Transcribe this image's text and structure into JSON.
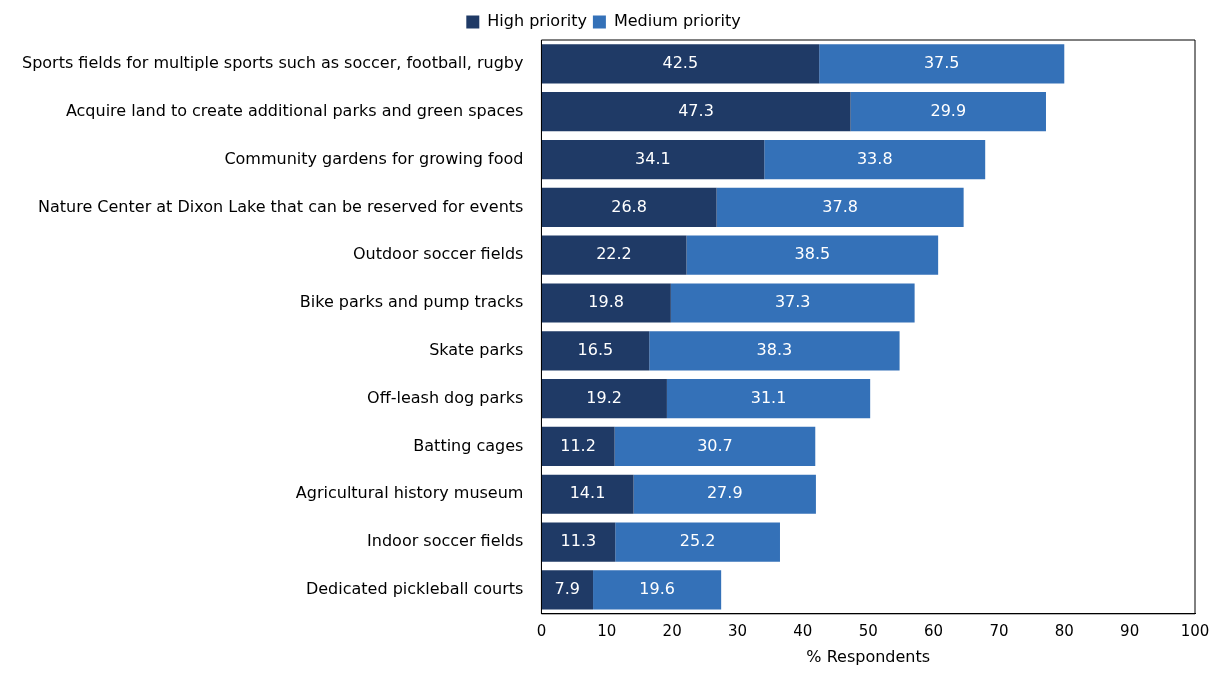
{
  "chart_data": {
    "type": "bar",
    "orientation": "horizontal",
    "stacked": true,
    "xlabel": "% Respondents",
    "categories": [
      "Sports fields for multiple sports such as soccer, football, rugby",
      "Acquire land to create additional parks and green spaces",
      "Community gardens for growing food",
      "Nature Center at Dixon Lake that can be reserved for events",
      "Outdoor soccer fields",
      "Bike parks and pump tracks",
      "Skate parks",
      "Off-leash dog parks",
      "Batting cages",
      "Agricultural history museum",
      "Indoor soccer fields",
      "Dedicated pickleball courts"
    ],
    "series": [
      {
        "name": "High priority",
        "color": "#1f3a66",
        "values": [
          42.5,
          47.3,
          34.1,
          26.8,
          22.2,
          19.8,
          16.5,
          19.2,
          11.2,
          14.1,
          11.3,
          7.9
        ]
      },
      {
        "name": "Medium priority",
        "color": "#3471b8",
        "values": [
          37.5,
          29.9,
          33.8,
          37.8,
          38.5,
          37.3,
          38.3,
          31.1,
          30.7,
          27.9,
          25.2,
          19.6
        ]
      }
    ],
    "xlim": [
      0,
      100
    ],
    "xticks": [
      0,
      10,
      20,
      30,
      40,
      50,
      60,
      70,
      80,
      90,
      100
    ],
    "grid": false,
    "legend": "top",
    "data_labels": true
  }
}
